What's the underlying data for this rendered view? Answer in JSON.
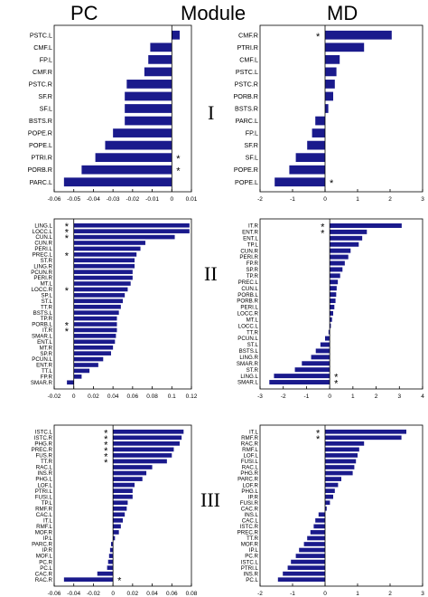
{
  "headers": {
    "left": "PC",
    "middle": "Module",
    "right": "MD"
  },
  "row_labels": [
    "I",
    "II",
    "III"
  ],
  "colors": {
    "bar": "#1a1a8c",
    "axis": "#000000"
  },
  "chart_data": [
    {
      "id": "pc-I",
      "type": "bar",
      "orientation": "horizontal",
      "column": "PC",
      "module": "I",
      "categories": [
        "PSTC.L",
        "CMF.L",
        "FP.L",
        "CMF.R",
        "PSTC.R",
        "SF.R",
        "SF.L",
        "BSTS.R",
        "POPE.R",
        "POPE.L",
        "PTRI.R",
        "PORB.R",
        "PARC.L"
      ],
      "values": [
        0.004,
        -0.011,
        -0.012,
        -0.014,
        -0.023,
        -0.024,
        -0.024,
        -0.024,
        -0.03,
        -0.034,
        -0.039,
        -0.046,
        -0.055
      ],
      "stars": [
        "PTRI.R",
        "PORB.R"
      ],
      "xlim": [
        -0.06,
        0.01
      ],
      "xticks": [
        "-0.06",
        "-0.05",
        "-0.04",
        "-0.03",
        "-0.02",
        "-0.01",
        "0",
        "0.01"
      ],
      "xtick_values": [
        -0.06,
        -0.05,
        -0.04,
        -0.03,
        -0.02,
        -0.01,
        0,
        0.01
      ]
    },
    {
      "id": "md-I",
      "type": "bar",
      "orientation": "horizontal",
      "column": "MD",
      "module": "I",
      "categories": [
        "CMF.R",
        "PTRI.R",
        "CMF.L",
        "PSTC.L",
        "PSTC.R",
        "PORB.R",
        "BSTS.R",
        "PARC.L",
        "FP.L",
        "SF.R",
        "SF.L",
        "POPE.R",
        "POPE.L"
      ],
      "values": [
        2.05,
        1.2,
        0.45,
        0.35,
        0.3,
        0.25,
        0.1,
        -0.3,
        -0.4,
        -0.55,
        -0.9,
        -1.1,
        -1.55
      ],
      "stars": [
        "CMF.R",
        "POPE.L"
      ],
      "xlim": [
        -2,
        3
      ],
      "xticks": [
        "-2",
        "-1",
        "0",
        "1",
        "2",
        "3"
      ],
      "xtick_values": [
        -2,
        -1,
        0,
        1,
        2,
        3
      ]
    },
    {
      "id": "pc-II",
      "type": "bar",
      "orientation": "horizontal",
      "column": "PC",
      "module": "II",
      "categories": [
        "LING.L",
        "LOCC.L",
        "CUN.L",
        "CUN.R",
        "PERI.L",
        "PREC.L",
        "ST.R",
        "LING.R",
        "PCUN.R",
        "PERI.R",
        "MT.L",
        "LOCC.R",
        "SP.L",
        "ST.L",
        "TT.R",
        "BSTS.L",
        "TP.R",
        "PORB.L",
        "IT.R",
        "SMAR.L",
        "ENT.L",
        "MT.R",
        "SP.R",
        "PCUN.L",
        "ENT.R",
        "TT.L",
        "FP.R",
        "SMAR.R"
      ],
      "values": [
        0.118,
        0.118,
        0.103,
        0.073,
        0.068,
        0.064,
        0.062,
        0.062,
        0.06,
        0.06,
        0.058,
        0.055,
        0.052,
        0.05,
        0.048,
        0.046,
        0.044,
        0.044,
        0.044,
        0.043,
        0.042,
        0.04,
        0.038,
        0.03,
        0.025,
        0.016,
        0.008,
        -0.007
      ],
      "stars": [
        "LING.L",
        "LOCC.L",
        "CUN.L",
        "PREC.L",
        "LOCC.R",
        "PORB.L",
        "IT.R"
      ],
      "xlim": [
        -0.02,
        0.12
      ],
      "xticks": [
        "-0.02",
        "0",
        "0.02",
        "0.04",
        "0.06",
        "0.08",
        "0.1",
        "0.12"
      ],
      "xtick_values": [
        -0.02,
        0,
        0.02,
        0.04,
        0.06,
        0.08,
        0.1,
        0.12
      ]
    },
    {
      "id": "md-II",
      "type": "bar",
      "orientation": "horizontal",
      "column": "MD",
      "module": "II",
      "categories": [
        "IT.R",
        "ENT.R",
        "ENT.L",
        "TP.L",
        "CUN.R",
        "PERI.R",
        "FP.R",
        "SP.R",
        "TP.R",
        "PREC.L",
        "CUN.L",
        "PORB.L",
        "PORB.R",
        "PERI.L",
        "LOCC.R",
        "MT.L",
        "LOCC.L",
        "TT.R",
        "PCUN.L",
        "ST.L",
        "BSTS.L",
        "LING.R",
        "SMAR.R",
        "ST.R",
        "LING.L",
        "SMAR.L"
      ],
      "values": [
        3.1,
        1.6,
        1.4,
        1.25,
        0.9,
        0.8,
        0.65,
        0.55,
        0.45,
        0.35,
        0.3,
        0.28,
        0.25,
        0.2,
        0.15,
        0.1,
        0.05,
        -0.05,
        -0.2,
        -0.4,
        -0.6,
        -0.8,
        -1.2,
        -1.5,
        -2.4,
        -2.6
      ],
      "stars": [
        "IT.R",
        "ENT.R",
        "LING.L",
        "SMAR.L"
      ],
      "xlim": [
        -3,
        4
      ],
      "xticks": [
        "-3",
        "-2",
        "-1",
        "0",
        "1",
        "2",
        "3",
        "4"
      ],
      "xtick_values": [
        -3,
        -2,
        -1,
        0,
        1,
        2,
        3,
        4
      ]
    },
    {
      "id": "pc-III",
      "type": "bar",
      "orientation": "horizontal",
      "column": "PC",
      "module": "III",
      "categories": [
        "ISTC.L",
        "ISTC.R",
        "PHG.R",
        "PREC.R",
        "FUS.R",
        "TT.R",
        "RAC.L",
        "INS.R",
        "PHG.L",
        "LOF.L",
        "PTRI.L",
        "FUSI.L",
        "TP.L",
        "RMF.R",
        "CAC.L",
        "IT.L",
        "RMF.L",
        "MOF.R",
        "IP.L",
        "PARC.R",
        "IP.R",
        "MOF.L",
        "PC.R",
        "PC.L",
        "CAC.R",
        "RAC.R"
      ],
      "values": [
        0.072,
        0.07,
        0.068,
        0.062,
        0.06,
        0.055,
        0.04,
        0.034,
        0.03,
        0.022,
        0.02,
        0.02,
        0.015,
        0.014,
        0.012,
        0.01,
        0.008,
        0.006,
        0.002,
        -0.002,
        -0.003,
        -0.004,
        -0.005,
        -0.006,
        -0.016,
        -0.05
      ],
      "stars": [
        "ISTC.L",
        "ISTC.R",
        "PHG.R",
        "PREC.R",
        "FUS.R",
        "TT.R",
        "RAC.R"
      ],
      "xlim": [
        -0.06,
        0.08
      ],
      "xticks": [
        "-0.06",
        "-0.04",
        "-0.02",
        "0",
        "0.02",
        "0.04",
        "0.06",
        "0.08"
      ],
      "xtick_values": [
        -0.06,
        -0.04,
        -0.02,
        0,
        0.02,
        0.04,
        0.06,
        0.08
      ]
    },
    {
      "id": "md-III",
      "type": "bar",
      "orientation": "horizontal",
      "column": "MD",
      "module": "III",
      "categories": [
        "IT.L",
        "RMF.R",
        "RAC.R",
        "RMF.L",
        "LOF.L",
        "FUSI.L",
        "RAC.L",
        "PHG.R",
        "PARC.R",
        "LOF.R",
        "PHG.L",
        "IP.R",
        "FUSI.R",
        "CAC.R",
        "INS.L",
        "CAC.L",
        "ISTC.R",
        "PREC.R",
        "TT.R",
        "MOF.R",
        "IP.L",
        "PC.R",
        "ISTC.L",
        "PTRI.L",
        "INS.R",
        "PC.L"
      ],
      "values": [
        2.5,
        2.35,
        1.2,
        1.05,
        1.0,
        0.95,
        0.9,
        0.85,
        0.5,
        0.4,
        0.3,
        0.25,
        0.15,
        0.05,
        -0.2,
        -0.3,
        -0.35,
        -0.45,
        -0.55,
        -0.65,
        -0.8,
        -0.9,
        -1.05,
        -1.15,
        -1.3,
        -1.45
      ],
      "stars": [
        "IT.L",
        "RMF.R"
      ],
      "xlim": [
        -2,
        3
      ],
      "xticks": [
        "-2",
        "-1",
        "0",
        "1",
        "2",
        "3"
      ],
      "xtick_values": [
        -2,
        -1,
        0,
        1,
        2,
        3
      ]
    }
  ]
}
